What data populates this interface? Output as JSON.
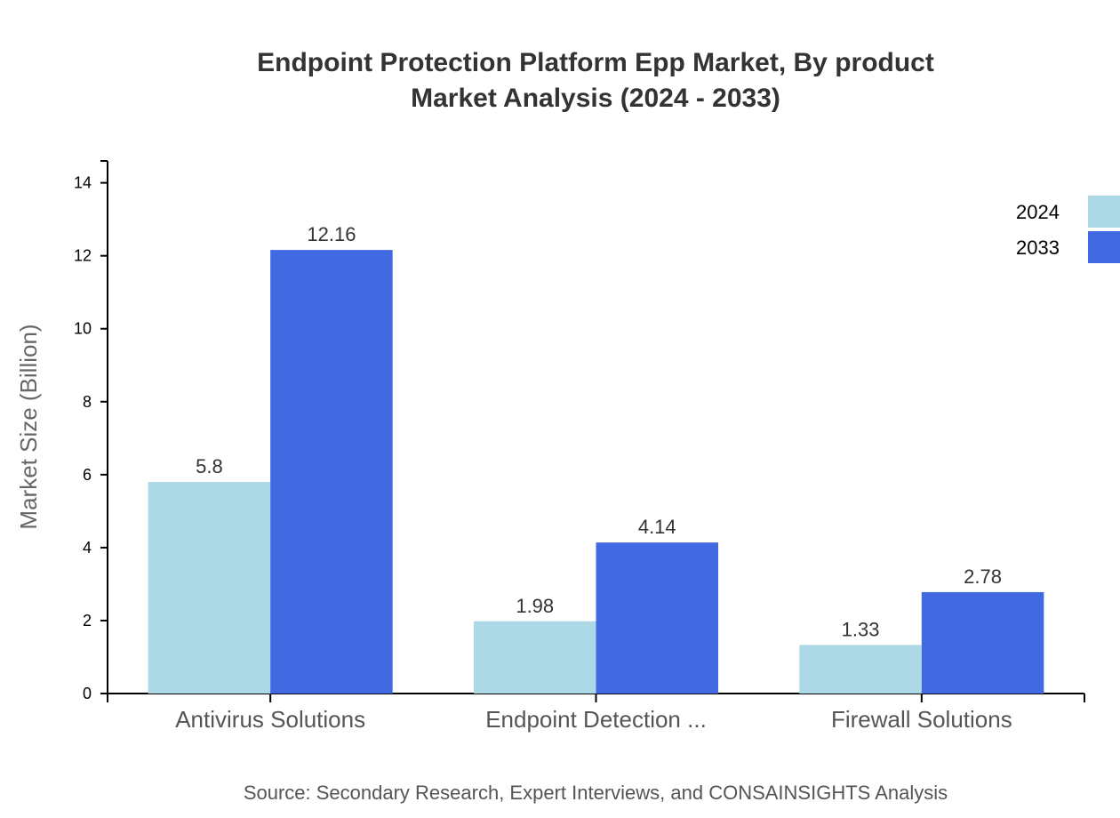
{
  "chart_data": {
    "type": "bar",
    "title_lines": [
      "Endpoint Protection Platform Epp Market, By product",
      "Market Analysis (2024 - 2033)"
    ],
    "ylabel": "Market Size (Billion)",
    "xlabel": "",
    "categories": [
      "Antivirus Solutions",
      "Endpoint Detection ...",
      "Firewall Solutions"
    ],
    "series": [
      {
        "name": "2024",
        "color": "#add8e6",
        "values": [
          5.8,
          1.98,
          1.33
        ]
      },
      {
        "name": "2033",
        "color": "#4169e1",
        "values": [
          12.16,
          4.14,
          2.78
        ]
      }
    ],
    "ylim": [
      0,
      14.6
    ],
    "yticks": [
      0,
      2,
      4,
      6,
      8,
      10,
      12,
      14
    ],
    "grid": false,
    "legend_position": "top-right",
    "source": "Source: Secondary Research, Expert Interviews, and CONSAINSIGHTS Analysis"
  }
}
